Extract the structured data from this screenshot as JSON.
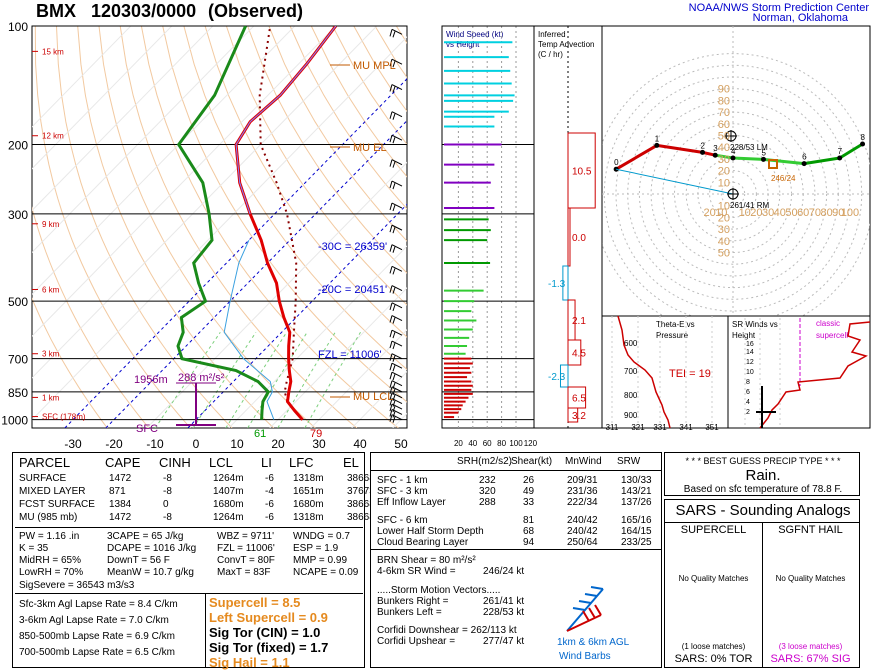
{
  "header": {
    "station": "BMX",
    "time": "120303/0000",
    "mode": "(Observed)",
    "org_line1": "NOAA/NWS Storm Prediction Center",
    "org_line2": "Norman, Oklahoma"
  },
  "skewt": {
    "pressure_levels": [
      {
        "p": 100,
        "label": "100"
      },
      {
        "p": 200,
        "label": "200"
      },
      {
        "p": 300,
        "label": "300"
      },
      {
        "p": 500,
        "label": "500"
      },
      {
        "p": 700,
        "label": "700"
      },
      {
        "p": 850,
        "label": "850"
      },
      {
        "p": 1000,
        "label": "1000"
      }
    ],
    "height_labels": [
      {
        "p": 116,
        "label": "15 km"
      },
      {
        "p": 190,
        "label": "12 km"
      },
      {
        "p": 318,
        "label": "9 km"
      },
      {
        "p": 467,
        "label": "6 km"
      },
      {
        "p": 680,
        "label": "3 km"
      },
      {
        "p": 878,
        "label": "1 km"
      },
      {
        "p": 982,
        "label": "SFC (178m)"
      }
    ],
    "temp_ticks": [
      "-30",
      "-20",
      "-10",
      "0",
      "10",
      "20",
      "30",
      "40",
      "50"
    ],
    "annotations": {
      "mu_mpl": "MU MPL",
      "mu_el": "MU EL",
      "mu_lcl": "MU LCL",
      "iso30": "-30C = 26359'",
      "iso20": "-20C = 20451'",
      "fzl": "FZL = 11006'",
      "height_1956": "1956m",
      "srh": "288 m²/s²",
      "sfc": "SFC",
      "sfc_td": "61",
      "sfc_t": "79"
    },
    "chart_data": {
      "type": "line",
      "title": "BMX 120303/0000 (Observed)",
      "series": [
        {
          "name": "Temperature",
          "points": [
            [
              1000,
              26
            ],
            [
              950,
              22
            ],
            [
              900,
              18
            ],
            [
              850,
              16
            ],
            [
              800,
              14
            ],
            [
              750,
              11
            ],
            [
              700,
              8
            ],
            [
              650,
              5
            ],
            [
              600,
              2
            ],
            [
              550,
              -3
            ],
            [
              500,
              -8
            ],
            [
              450,
              -13
            ],
            [
              400,
              -20
            ],
            [
              350,
              -27
            ],
            [
              300,
              -36
            ],
            [
              250,
              -46
            ],
            [
              200,
              -56
            ],
            [
              175,
              -58
            ],
            [
              150,
              -57
            ],
            [
              125,
              -58
            ],
            [
              100,
              -60
            ]
          ]
        },
        {
          "name": "Dewpoint",
          "points": [
            [
              1000,
              16
            ],
            [
              950,
              14
            ],
            [
              900,
              12
            ],
            [
              850,
              11
            ],
            [
              800,
              6
            ],
            [
              750,
              -2
            ],
            [
              700,
              -18
            ],
            [
              650,
              -22
            ],
            [
              600,
              -24
            ],
            [
              550,
              -28
            ],
            [
              500,
              -26
            ],
            [
              450,
              -32
            ],
            [
              400,
              -38
            ],
            [
              350,
              -39
            ],
            [
              300,
              -46
            ],
            [
              250,
              -55
            ],
            [
              200,
              -70
            ],
            [
              150,
              -73
            ],
            [
              100,
              -82
            ]
          ]
        }
      ]
    }
  },
  "wind_panel": {
    "title_line1": "Wind Speed (kt)",
    "title_line2": "vs Height",
    "ticks": [
      "20",
      "40",
      "60",
      "80",
      "100",
      "120"
    ]
  },
  "temp_adv_panel": {
    "title_line1": "Inferred",
    "title_line2": "Temp Advection",
    "title_line3": "(C / hr)",
    "values": [
      "10.5",
      "0.0",
      "-1.3",
      "2.1",
      "4.5",
      "-2.3",
      "6.5",
      "3.2"
    ]
  },
  "hodograph": {
    "ring_labels": [
      "90",
      "80",
      "70",
      "60",
      "50",
      "40",
      "30",
      "20",
      "10"
    ],
    "ring_labels_bottom": [
      "10",
      "20",
      "30",
      "40",
      "50"
    ],
    "x_labels": [
      "20",
      "10",
      "10",
      "20",
      "30",
      "40",
      "50",
      "60",
      "70",
      "80",
      "90",
      "100"
    ],
    "lm_label": "228/53 LM",
    "rm_label": "261/41 RM",
    "mean_label": "246/24",
    "chart_data": {
      "type": "line",
      "series": [
        {
          "name": "hodograph",
          "points": [
            [
              4,
              12
            ],
            [
              20,
              29
            ],
            [
              38,
              24
            ],
            [
              43,
              22
            ],
            [
              50,
              20
            ],
            [
              62,
              19
            ],
            [
              78,
              16
            ],
            [
              92,
              20
            ],
            [
              101,
              30
            ]
          ]
        }
      ],
      "point_labels": [
        "0",
        "1",
        "2",
        "3",
        "4",
        "5",
        "6",
        "7",
        "8"
      ]
    }
  },
  "theta_panel": {
    "title_line1": "Theta-E vs",
    "title_line2": "Pressure",
    "tei": "TEI = 19",
    "y_ticks": [
      "600",
      "700",
      "800",
      "900"
    ],
    "x_ticks": [
      "311",
      "321",
      "331",
      "341",
      "351"
    ]
  },
  "sr_panel": {
    "title_line1": "SR Winds vs",
    "title_line2": "Height",
    "legend_line1": "classic",
    "legend_line2": "supercell",
    "y_ticks": [
      "16",
      "14",
      "12",
      "10",
      "8",
      "6",
      "4",
      "2"
    ]
  },
  "parcel": {
    "headers": [
      "PARCEL",
      "CAPE",
      "CINH",
      "LCL",
      "LI",
      "LFC",
      "EL"
    ],
    "rows": [
      [
        "SURFACE",
        "1472",
        "-8",
        "1264m",
        "-6",
        "1318m",
        "38668'"
      ],
      [
        "MIXED LAYER",
        "871",
        "-8",
        "1407m",
        "-4",
        "1651m",
        "37673'"
      ],
      [
        "FCST SURFACE",
        "1384",
        "0",
        "1680m",
        "-6",
        "1680m",
        "38668'"
      ],
      [
        "MU    (985 mb)",
        "1472",
        "-8",
        "1264m",
        "-6",
        "1318m",
        "38668'"
      ]
    ],
    "indices": [
      [
        "PW = 1.16 .in",
        "3CAPE = 65 J/kg",
        "WBZ = 9711'",
        "WNDG = 0.7"
      ],
      [
        "K = 35",
        "DCAPE = 1016 J/kg",
        "FZL = 11006'",
        "ESP = 1.9"
      ],
      [
        "MidRH = 65%",
        "DownT = 56 F",
        "ConvT = 80F",
        "MMP = 0.99"
      ],
      [
        "LowRH = 70%",
        "MeanW = 10.7 g/kg",
        "MaxT = 83F",
        "NCAPE = 0.09"
      ]
    ],
    "sigsevere": "SigSevere = 36543 m3/s3",
    "lapse": [
      "Sfc-3km Agl Lapse Rate = 8.4 C/km",
      "3-6km Agl Lapse Rate = 7.0 C/km",
      "850-500mb Lapse Rate = 6.9 C/km",
      "700-500mb Lapse Rate = 6.5 C/km"
    ],
    "composite": [
      {
        "text": "Supercell = 8.5",
        "color": "#e58a1f"
      },
      {
        "text": "Left Supercell = 0.9",
        "color": "#e58a1f"
      },
      {
        "text": "Sig Tor (CIN) = 1.0",
        "color": "#000000"
      },
      {
        "text": "Sig Tor (fixed) = 1.7",
        "color": "#000000"
      },
      {
        "text": "Sig Hail = 1.1",
        "color": "#e58a1f"
      }
    ]
  },
  "kinematics": {
    "headers": [
      "SRH(m2/s2)",
      "Shear(kt)",
      "MnWind",
      "SRW"
    ],
    "rows1": [
      [
        "SFC - 1 km",
        "232",
        "26",
        "209/31",
        "130/33"
      ],
      [
        "SFC - 3 km",
        "320",
        "49",
        "231/36",
        "143/21"
      ],
      [
        "Eff Inflow Layer",
        "288",
        "33",
        "222/34",
        "137/26"
      ]
    ],
    "rows2": [
      [
        "SFC - 6 km",
        "",
        "81",
        "240/42",
        "165/16"
      ],
      [
        "Lower Half Storm Depth",
        "",
        "68",
        "240/42",
        "164/15"
      ],
      [
        "Cloud Bearing Layer",
        "",
        "94",
        "250/64",
        "233/25"
      ]
    ],
    "brn_shear": "BRN Shear =  80 m²/s²",
    "sr_wind_label": "4-6km SR Wind =",
    "sr_wind_value": "246/24 kt",
    "storm_motion_title": ".....Storm Motion Vectors.....",
    "bunkers_right_label": "Bunkers Right =",
    "bunkers_right_value": "261/41 kt",
    "bunkers_left_label": "Bunkers Left =",
    "bunkers_left_value": "228/53 kt",
    "corfidi_down": "Corfidi Downshear = 262/113 kt",
    "corfidi_up_label": "Corfidi Upshear =",
    "corfidi_up_value": "277/47 kt",
    "barb_label1": "1km & 6km AGL",
    "barb_label2": "Wind Barbs"
  },
  "precip": {
    "title": "* * * BEST GUESS PRECIP TYPE * * *",
    "type": "Rain.",
    "note": "Based on sfc temperature of 78.8 F."
  },
  "analogs": {
    "title": "SARS - Sounding Analogs",
    "col1": "SUPERCELL",
    "col2": "SGFNT HAIL",
    "match1": "No Quality Matches",
    "match2": "No Quality Matches",
    "loose1": "(1 loose matches)",
    "loose2": "(3 loose matches)",
    "sars1": "SARS:  0% TOR",
    "sars2": "SARS:  67% SIG"
  }
}
